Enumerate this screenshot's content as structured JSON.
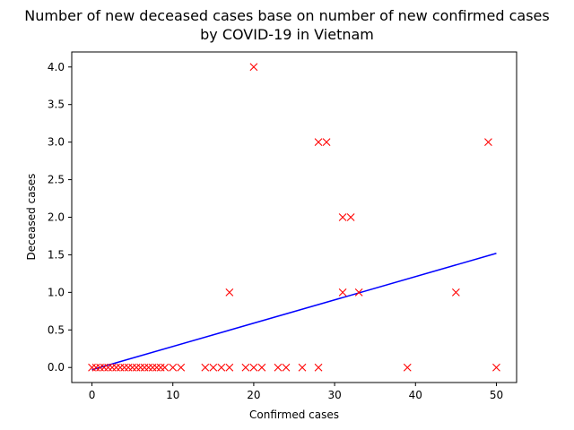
{
  "chart_data": {
    "type": "scatter",
    "title_line1": "Number of new deceased cases base on number of new confirmed cases",
    "title_line2": "by COVID-19 in Vietnam",
    "xlabel": "Confirmed cases",
    "ylabel": "Deceased cases",
    "xlim": [
      -2.5,
      52.5
    ],
    "ylim": [
      -0.2,
      4.2
    ],
    "xticks": [
      0,
      10,
      20,
      30,
      40,
      50
    ],
    "xtick_labels": [
      "0",
      "10",
      "20",
      "30",
      "40",
      "50"
    ],
    "yticks": [
      0.0,
      0.5,
      1.0,
      1.5,
      2.0,
      2.5,
      3.0,
      3.5,
      4.0
    ],
    "ytick_labels": [
      "0.0",
      "0.5",
      "1.0",
      "1.5",
      "2.0",
      "2.5",
      "3.0",
      "3.5",
      "4.0"
    ],
    "grid": false,
    "series": [
      {
        "marker": "x",
        "color": "#ff0000",
        "x": [
          0,
          0.5,
          1,
          1.5,
          2,
          2.5,
          3,
          3.5,
          4,
          4.5,
          5,
          5.5,
          6,
          6.5,
          7,
          7.5,
          8,
          8.5,
          9,
          10,
          11,
          14,
          15,
          16,
          17,
          19,
          20,
          21,
          23,
          24,
          26,
          28,
          39,
          50,
          17,
          31,
          33,
          45,
          31,
          32,
          28,
          29,
          49,
          20
        ],
        "y": [
          0,
          0,
          0,
          0,
          0,
          0,
          0,
          0,
          0,
          0,
          0,
          0,
          0,
          0,
          0,
          0,
          0,
          0,
          0,
          0,
          0,
          0,
          0,
          0,
          0,
          0,
          0,
          0,
          0,
          0,
          0,
          0,
          0,
          0,
          1,
          1,
          1,
          1,
          2,
          2,
          3,
          3,
          3,
          4
        ]
      },
      {
        "marker": "line",
        "color": "#0000ff",
        "x": [
          0,
          50
        ],
        "y": [
          -0.03,
          1.52
        ]
      }
    ]
  }
}
